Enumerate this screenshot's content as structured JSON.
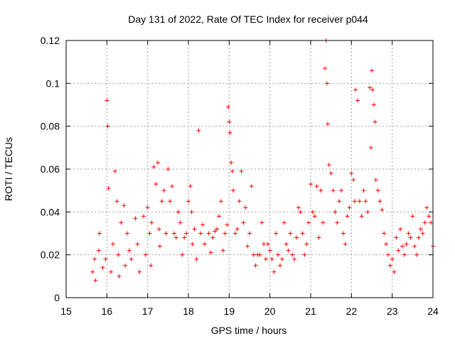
{
  "chart_data": {
    "type": "scatter",
    "title": "Day 131 of 2022, Rate Of TEC Index for receiver p044",
    "xlabel": "GPS time / hours",
    "ylabel": "ROTI / TECUs",
    "xlim": [
      15,
      24
    ],
    "ylim": [
      0,
      0.12
    ],
    "xticks": [
      "15",
      "16",
      "17",
      "18",
      "19",
      "20",
      "21",
      "22",
      "23",
      "24"
    ],
    "xtick_values": [
      15,
      16,
      17,
      18,
      19,
      20,
      21,
      22,
      23,
      24
    ],
    "yticks": [
      "0",
      "0.02",
      "0.04",
      "0.06",
      "0.08",
      "0.1",
      "0.12"
    ],
    "ytick_values": [
      0,
      0.02,
      0.04,
      0.06,
      0.08,
      0.1,
      0.12
    ],
    "grid": true,
    "marker": "plus",
    "marker_color": "#ff0000",
    "series": [
      {
        "name": "ROTI",
        "x": [
          15.65,
          15.7,
          15.72,
          15.8,
          15.82,
          15.9,
          15.97,
          16.0,
          16.02,
          16.04,
          16.1,
          16.15,
          16.2,
          16.25,
          16.28,
          16.3,
          16.35,
          16.42,
          16.45,
          16.5,
          16.55,
          16.6,
          16.7,
          16.75,
          16.8,
          16.9,
          16.95,
          17.0,
          17.05,
          17.08,
          17.1,
          17.15,
          17.2,
          17.25,
          17.28,
          17.3,
          17.35,
          17.4,
          17.45,
          17.5,
          17.55,
          17.6,
          17.65,
          17.7,
          17.75,
          17.8,
          17.85,
          17.9,
          17.95,
          18.0,
          18.05,
          18.08,
          18.1,
          18.15,
          18.2,
          18.25,
          18.3,
          18.35,
          18.4,
          18.5,
          18.55,
          18.6,
          18.65,
          18.7,
          18.75,
          18.8,
          18.85,
          18.9,
          18.95,
          18.98,
          19.0,
          19.02,
          19.05,
          19.08,
          19.1,
          19.15,
          19.2,
          19.25,
          19.3,
          19.35,
          19.4,
          19.45,
          19.5,
          19.55,
          19.6,
          19.65,
          19.7,
          19.75,
          19.8,
          19.85,
          19.9,
          19.95,
          20.0,
          20.05,
          20.1,
          20.15,
          20.2,
          20.25,
          20.3,
          20.35,
          20.4,
          20.45,
          20.5,
          20.55,
          20.6,
          20.65,
          20.7,
          20.75,
          20.8,
          20.85,
          20.9,
          20.95,
          21.0,
          21.05,
          21.1,
          21.15,
          21.2,
          21.25,
          21.3,
          21.35,
          21.38,
          21.4,
          21.42,
          21.45,
          21.5,
          21.55,
          21.6,
          21.65,
          21.7,
          21.75,
          21.8,
          21.85,
          21.9,
          21.95,
          22.0,
          22.05,
          22.08,
          22.1,
          22.15,
          22.2,
          22.25,
          22.3,
          22.35,
          22.4,
          22.45,
          22.48,
          22.5,
          22.52,
          22.55,
          22.58,
          22.6,
          22.65,
          22.7,
          22.75,
          22.8,
          22.85,
          22.9,
          22.95,
          23.0,
          23.05,
          23.1,
          23.15,
          23.2,
          23.25,
          23.3,
          23.35,
          23.4,
          23.45,
          23.5,
          23.55,
          23.6,
          23.65,
          23.7,
          23.75,
          23.8,
          23.85,
          23.9,
          23.95,
          24.0
        ],
        "y": [
          0.012,
          0.018,
          0.008,
          0.022,
          0.03,
          0.014,
          0.018,
          0.092,
          0.08,
          0.051,
          0.012,
          0.025,
          0.059,
          0.045,
          0.02,
          0.01,
          0.035,
          0.043,
          0.015,
          0.03,
          0.022,
          0.018,
          0.037,
          0.025,
          0.012,
          0.038,
          0.02,
          0.042,
          0.03,
          0.015,
          0.035,
          0.061,
          0.053,
          0.063,
          0.032,
          0.024,
          0.045,
          0.05,
          0.03,
          0.06,
          0.045,
          0.052,
          0.03,
          0.028,
          0.04,
          0.035,
          0.02,
          0.028,
          0.03,
          0.045,
          0.052,
          0.04,
          0.025,
          0.032,
          0.018,
          0.078,
          0.03,
          0.034,
          0.025,
          0.03,
          0.021,
          0.028,
          0.031,
          0.032,
          0.038,
          0.045,
          0.022,
          0.03,
          0.034,
          0.089,
          0.082,
          0.077,
          0.063,
          0.059,
          0.05,
          0.03,
          0.032,
          0.045,
          0.059,
          0.035,
          0.042,
          0.024,
          0.03,
          0.052,
          0.02,
          0.015,
          0.02,
          0.02,
          0.035,
          0.025,
          0.018,
          0.025,
          0.022,
          0.018,
          0.012,
          0.03,
          0.02,
          0.015,
          0.018,
          0.035,
          0.025,
          0.022,
          0.03,
          0.02,
          0.018,
          0.028,
          0.042,
          0.04,
          0.03,
          0.02,
          0.025,
          0.035,
          0.053,
          0.04,
          0.038,
          0.052,
          0.028,
          0.05,
          0.035,
          0.107,
          0.12,
          0.1,
          0.081,
          0.062,
          0.058,
          0.05,
          0.04,
          0.035,
          0.045,
          0.05,
          0.03,
          0.025,
          0.038,
          0.042,
          0.058,
          0.055,
          0.045,
          0.097,
          0.092,
          0.045,
          0.038,
          0.05,
          0.045,
          0.04,
          0.098,
          0.07,
          0.106,
          0.097,
          0.09,
          0.082,
          0.055,
          0.05,
          0.045,
          0.041,
          0.03,
          0.025,
          0.02,
          0.015,
          0.018,
          0.012,
          0.028,
          0.022,
          0.032,
          0.024,
          0.02,
          0.025,
          0.03,
          0.028,
          0.038,
          0.024,
          0.02,
          0.028,
          0.032,
          0.03,
          0.035,
          0.042,
          0.038,
          0.035,
          0.024
        ]
      }
    ]
  }
}
